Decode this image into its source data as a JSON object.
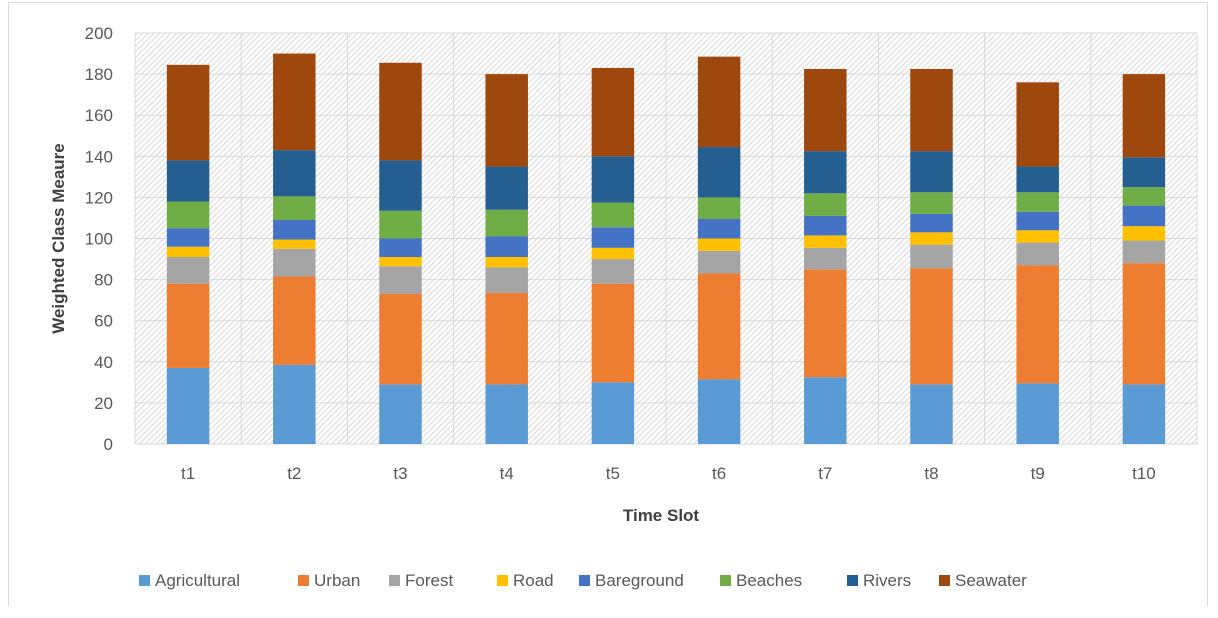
{
  "chart_data": {
    "type": "bar",
    "stacked": true,
    "xlabel": "Time Slot",
    "ylabel": "Weighted Class Meaure",
    "ylim": [
      0,
      200
    ],
    "yticks": [
      0,
      20,
      40,
      60,
      80,
      100,
      120,
      140,
      160,
      180,
      200
    ],
    "grid": true,
    "legend_position": "bottom",
    "categories": [
      "t1",
      "t2",
      "t3",
      "t4",
      "t5",
      "t6",
      "t7",
      "t8",
      "t9",
      "t10"
    ],
    "series": [
      {
        "name": "Agricultural",
        "color": "#5b9bd5",
        "values": [
          37,
          38.5,
          29,
          29,
          30,
          31.5,
          32.5,
          29,
          29.5,
          29
        ]
      },
      {
        "name": "Urban",
        "color": "#ed7d31",
        "values": [
          41,
          43,
          44,
          44.5,
          48,
          51.5,
          52.5,
          56.5,
          57.5,
          59
        ]
      },
      {
        "name": "Forest",
        "color": "#a5a5a5",
        "values": [
          13,
          13.5,
          13.5,
          12.5,
          12,
          11,
          10.5,
          11.5,
          11,
          11
        ]
      },
      {
        "name": "Road",
        "color": "#ffc000",
        "values": [
          5,
          4.5,
          4.5,
          5,
          5.5,
          6,
          6,
          6,
          6,
          7
        ]
      },
      {
        "name": "Bareground",
        "color": "#4472c4",
        "values": [
          9,
          9.5,
          9,
          10,
          10,
          9.5,
          9.5,
          9,
          9,
          10
        ]
      },
      {
        "name": "Beaches",
        "color": "#70ad47",
        "values": [
          13,
          11.5,
          13.5,
          13,
          12,
          10.5,
          11,
          10.5,
          9.5,
          9
        ]
      },
      {
        "name": "Rivers",
        "color": "#255e91",
        "values": [
          20,
          22.5,
          24.5,
          21,
          22.5,
          24.5,
          20.5,
          20,
          12.5,
          14.5
        ]
      },
      {
        "name": "Seawater",
        "color": "#9e480e",
        "values": [
          46.5,
          47,
          47.5,
          45,
          43,
          44,
          40,
          40,
          41,
          40.5
        ]
      }
    ]
  }
}
